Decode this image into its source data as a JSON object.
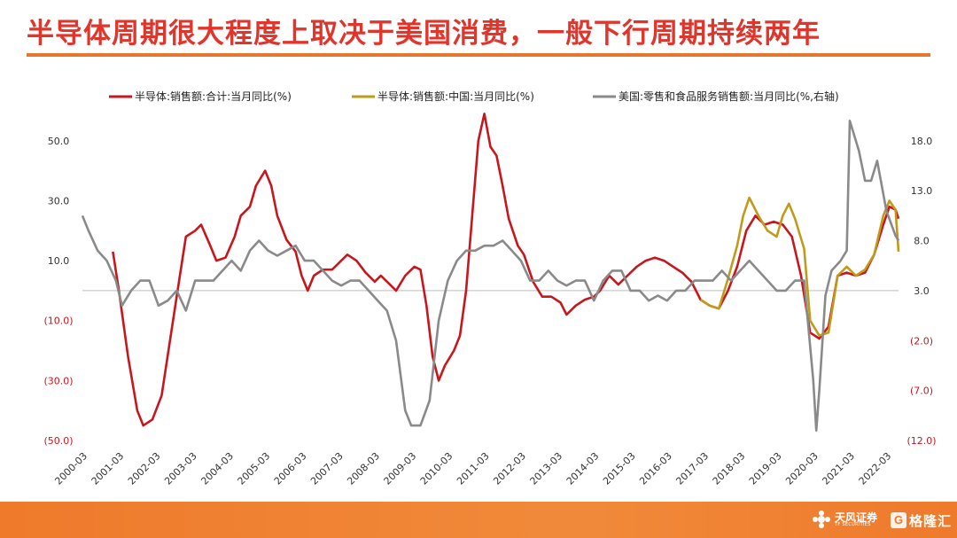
{
  "title": "半导体周期很大程度上取决于美国消费，一般下行周期持续两年",
  "footer": {
    "logo1_text": "天风证券",
    "logo1_sub": "TF SECURITIES",
    "logo2_text": "格隆汇"
  },
  "colors": {
    "title": "#e1352c",
    "rule": "#e8772e",
    "footer": "#ef7a2c",
    "series_red": "#c8161d",
    "series_gold": "#c09a1a",
    "series_gray": "#8a8a8a",
    "negative_label": "#c8161d"
  },
  "chart_data": {
    "type": "line",
    "x_tick_labels": [
      "2000-03",
      "2001-03",
      "2002-03",
      "2003-03",
      "2004-03",
      "2005-03",
      "2006-03",
      "2007-03",
      "2008-03",
      "2009-03",
      "2010-03",
      "2011-03",
      "2012-03",
      "2013-03",
      "2014-03",
      "2015-03",
      "2016-03",
      "2017-03",
      "2018-03",
      "2019-03",
      "2020-03",
      "2021-03",
      "2022-03"
    ],
    "xlim": [
      "2000-03",
      "2022-07"
    ],
    "y_left": {
      "ylim": [
        -50,
        60
      ],
      "ticks": [
        50,
        30,
        10,
        -10,
        -30,
        -50
      ],
      "tick_labels": [
        "50.0",
        "30.0",
        "10.0",
        "(10.0)",
        "(30.0)",
        "(50.0)"
      ]
    },
    "y_right": {
      "ylim": [
        -12,
        21
      ],
      "ticks": [
        18,
        13,
        8,
        3,
        -2,
        -7,
        -12
      ],
      "tick_labels": [
        "18.0",
        "13.0",
        "8.0",
        "3.0",
        "(2.0)",
        "(7.0)",
        "(12.0)"
      ]
    },
    "series": [
      {
        "name": "半导体:销售额:合计:当月同比(%)",
        "axis": "left",
        "color": "#c8161d",
        "points": [
          [
            "2001-01",
            13
          ],
          [
            "2001-03",
            0
          ],
          [
            "2001-06",
            -22
          ],
          [
            "2001-09",
            -40
          ],
          [
            "2001-11",
            -45
          ],
          [
            "2002-02",
            -43
          ],
          [
            "2002-05",
            -35
          ],
          [
            "2002-08",
            -15
          ],
          [
            "2002-11",
            5
          ],
          [
            "2003-01",
            18
          ],
          [
            "2003-04",
            20
          ],
          [
            "2003-06",
            22
          ],
          [
            "2003-09",
            15
          ],
          [
            "2003-11",
            10
          ],
          [
            "2004-02",
            11
          ],
          [
            "2004-05",
            18
          ],
          [
            "2004-07",
            25
          ],
          [
            "2004-10",
            28
          ],
          [
            "2004-12",
            35
          ],
          [
            "2005-03",
            40
          ],
          [
            "2005-05",
            35
          ],
          [
            "2005-07",
            25
          ],
          [
            "2005-10",
            17
          ],
          [
            "2006-01",
            13
          ],
          [
            "2006-03",
            5
          ],
          [
            "2006-05",
            0
          ],
          [
            "2006-07",
            5
          ],
          [
            "2006-10",
            7
          ],
          [
            "2007-01",
            7
          ],
          [
            "2007-04",
            10
          ],
          [
            "2007-06",
            12
          ],
          [
            "2007-09",
            10
          ],
          [
            "2007-12",
            6
          ],
          [
            "2008-03",
            3
          ],
          [
            "2008-05",
            5
          ],
          [
            "2008-08",
            2
          ],
          [
            "2008-10",
            0
          ],
          [
            "2009-01",
            5
          ],
          [
            "2009-04",
            8
          ],
          [
            "2009-06",
            7
          ],
          [
            "2009-08",
            -5
          ],
          [
            "2009-10",
            -22
          ],
          [
            "2009-12",
            -30
          ],
          [
            "2010-02",
            -25
          ],
          [
            "2010-05",
            -20
          ],
          [
            "2010-07",
            -15
          ],
          [
            "2010-09",
            0
          ],
          [
            "2010-11",
            25
          ],
          [
            "2011-01",
            50
          ],
          [
            "2011-03",
            59
          ],
          [
            "2011-05",
            48
          ],
          [
            "2011-07",
            45
          ],
          [
            "2011-09",
            35
          ],
          [
            "2011-11",
            24
          ],
          [
            "2012-02",
            15
          ],
          [
            "2012-04",
            12
          ],
          [
            "2012-07",
            3
          ],
          [
            "2012-10",
            -2
          ],
          [
            "2013-01",
            -2
          ],
          [
            "2013-04",
            -4
          ],
          [
            "2013-06",
            -8
          ],
          [
            "2013-09",
            -5
          ],
          [
            "2013-12",
            -3
          ],
          [
            "2014-03",
            -2
          ],
          [
            "2014-05",
            0
          ],
          [
            "2014-08",
            5
          ],
          [
            "2014-11",
            2
          ],
          [
            "2015-02",
            5
          ],
          [
            "2015-05",
            8
          ],
          [
            "2015-08",
            10
          ],
          [
            "2015-11",
            11
          ],
          [
            "2016-02",
            10
          ],
          [
            "2016-05",
            8
          ],
          [
            "2016-08",
            6
          ],
          [
            "2016-11",
            3
          ],
          [
            "2017-02",
            -3
          ],
          [
            "2017-05",
            -5
          ],
          [
            "2017-08",
            -6
          ],
          [
            "2017-11",
            0
          ],
          [
            "2018-02",
            8
          ],
          [
            "2018-05",
            20
          ],
          [
            "2018-08",
            25
          ],
          [
            "2018-11",
            22
          ],
          [
            "2019-02",
            23
          ],
          [
            "2019-05",
            22
          ],
          [
            "2019-08",
            18
          ],
          [
            "2019-11",
            5
          ],
          [
            "2020-02",
            -14
          ],
          [
            "2020-05",
            -16
          ],
          [
            "2020-08",
            -12
          ],
          [
            "2020-11",
            5
          ],
          [
            "2021-02",
            6
          ],
          [
            "2021-05",
            5
          ],
          [
            "2021-08",
            6
          ],
          [
            "2021-11",
            12
          ],
          [
            "2022-02",
            22
          ],
          [
            "2022-04",
            28
          ],
          [
            "2022-06",
            27
          ],
          [
            "2022-07",
            24
          ]
        ]
      },
      {
        "name": "半导体:销售额:中国:当月同比(%)",
        "axis": "left",
        "color": "#c09a1a",
        "points": [
          [
            "2017-02",
            -3
          ],
          [
            "2017-05",
            -5
          ],
          [
            "2017-08",
            -6
          ],
          [
            "2017-11",
            4
          ],
          [
            "2018-02",
            15
          ],
          [
            "2018-04",
            25
          ],
          [
            "2018-06",
            31
          ],
          [
            "2018-09",
            25
          ],
          [
            "2018-12",
            20
          ],
          [
            "2019-03",
            18
          ],
          [
            "2019-05",
            25
          ],
          [
            "2019-07",
            29
          ],
          [
            "2019-09",
            24
          ],
          [
            "2019-12",
            14
          ],
          [
            "2020-02",
            -10
          ],
          [
            "2020-05",
            -15
          ],
          [
            "2020-08",
            -14
          ],
          [
            "2020-11",
            5
          ],
          [
            "2021-02",
            8
          ],
          [
            "2021-05",
            5
          ],
          [
            "2021-08",
            7
          ],
          [
            "2021-11",
            12
          ],
          [
            "2022-02",
            25
          ],
          [
            "2022-04",
            30
          ],
          [
            "2022-06",
            27
          ],
          [
            "2022-07",
            13
          ]
        ]
      },
      {
        "name": "美国:零售和食品服务销售额:当月同比(%,右轴)",
        "axis": "right",
        "color": "#8a8a8a",
        "points": [
          [
            "2000-03",
            10.5
          ],
          [
            "2000-05",
            9
          ],
          [
            "2000-08",
            7
          ],
          [
            "2000-11",
            6
          ],
          [
            "2001-02",
            4
          ],
          [
            "2001-04",
            1.5
          ],
          [
            "2001-07",
            3
          ],
          [
            "2001-10",
            4
          ],
          [
            "2002-01",
            4
          ],
          [
            "2002-04",
            1.5
          ],
          [
            "2002-07",
            2
          ],
          [
            "2002-10",
            3
          ],
          [
            "2003-01",
            1
          ],
          [
            "2003-04",
            4
          ],
          [
            "2003-07",
            4
          ],
          [
            "2003-10",
            4
          ],
          [
            "2004-01",
            5
          ],
          [
            "2004-04",
            6
          ],
          [
            "2004-07",
            5
          ],
          [
            "2004-10",
            7
          ],
          [
            "2005-01",
            8
          ],
          [
            "2005-04",
            7
          ],
          [
            "2005-07",
            6.5
          ],
          [
            "2005-10",
            7
          ],
          [
            "2006-01",
            7.5
          ],
          [
            "2006-04",
            6
          ],
          [
            "2006-07",
            6
          ],
          [
            "2006-10",
            5
          ],
          [
            "2007-01",
            4
          ],
          [
            "2007-04",
            3.5
          ],
          [
            "2007-07",
            4
          ],
          [
            "2007-10",
            4
          ],
          [
            "2008-01",
            3
          ],
          [
            "2008-04",
            2
          ],
          [
            "2008-07",
            1
          ],
          [
            "2008-10",
            -2
          ],
          [
            "2009-01",
            -9
          ],
          [
            "2009-03",
            -10.5
          ],
          [
            "2009-06",
            -10.5
          ],
          [
            "2009-09",
            -8
          ],
          [
            "2009-12",
            0
          ],
          [
            "2010-03",
            4
          ],
          [
            "2010-06",
            6
          ],
          [
            "2010-09",
            7
          ],
          [
            "2010-12",
            7
          ],
          [
            "2011-03",
            7.5
          ],
          [
            "2011-06",
            7.5
          ],
          [
            "2011-09",
            8
          ],
          [
            "2011-12",
            7
          ],
          [
            "2012-03",
            6
          ],
          [
            "2012-06",
            4
          ],
          [
            "2012-09",
            4
          ],
          [
            "2012-12",
            5
          ],
          [
            "2013-03",
            4
          ],
          [
            "2013-06",
            3.5
          ],
          [
            "2013-09",
            4
          ],
          [
            "2013-12",
            4
          ],
          [
            "2014-03",
            2
          ],
          [
            "2014-06",
            4
          ],
          [
            "2014-09",
            5
          ],
          [
            "2014-12",
            5
          ],
          [
            "2015-03",
            3
          ],
          [
            "2015-06",
            3
          ],
          [
            "2015-09",
            2
          ],
          [
            "2015-12",
            2.5
          ],
          [
            "2016-03",
            2
          ],
          [
            "2016-06",
            3
          ],
          [
            "2016-09",
            3
          ],
          [
            "2016-12",
            4
          ],
          [
            "2017-03",
            4
          ],
          [
            "2017-06",
            4
          ],
          [
            "2017-09",
            5
          ],
          [
            "2017-12",
            4
          ],
          [
            "2018-03",
            5
          ],
          [
            "2018-06",
            6
          ],
          [
            "2018-09",
            5
          ],
          [
            "2018-12",
            4
          ],
          [
            "2019-03",
            3
          ],
          [
            "2019-06",
            3
          ],
          [
            "2019-09",
            4
          ],
          [
            "2019-12",
            4
          ],
          [
            "2020-03",
            -6
          ],
          [
            "2020-04",
            -11
          ],
          [
            "2020-05",
            -7
          ],
          [
            "2020-07",
            2.5
          ],
          [
            "2020-09",
            5
          ],
          [
            "2020-12",
            6
          ],
          [
            "2021-02",
            7
          ],
          [
            "2021-03",
            20
          ],
          [
            "2021-06",
            17
          ],
          [
            "2021-08",
            14
          ],
          [
            "2021-10",
            14
          ],
          [
            "2021-12",
            16
          ],
          [
            "2022-03",
            11
          ],
          [
            "2022-06",
            8.5
          ],
          [
            "2022-07",
            8
          ]
        ]
      }
    ],
    "legend": "top",
    "grid": false
  }
}
